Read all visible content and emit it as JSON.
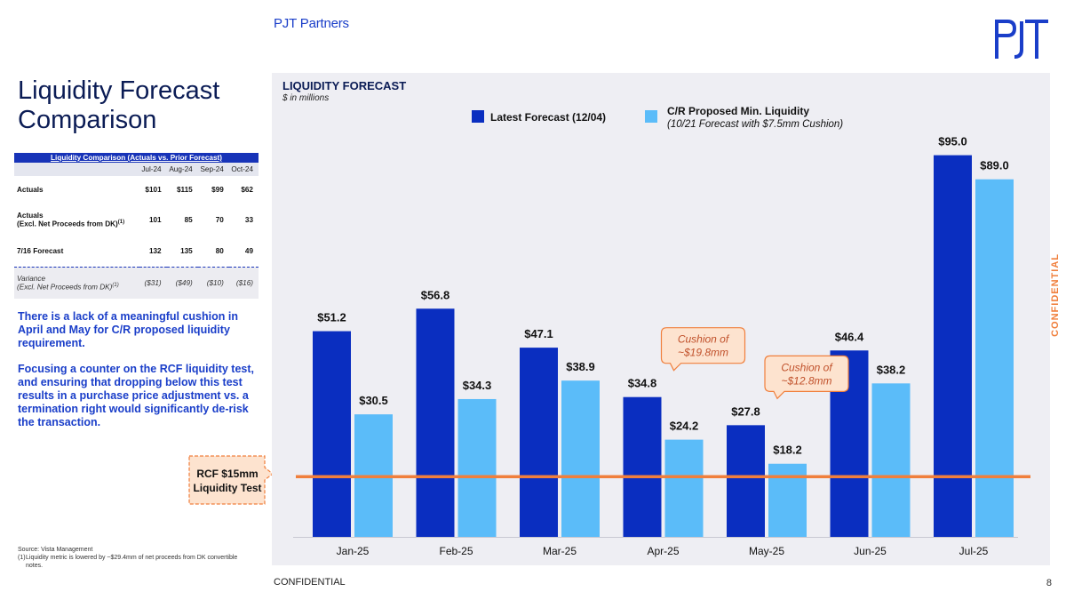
{
  "header": {
    "brand": "PJT Partners",
    "side_label": "CONFIDENTIAL"
  },
  "left": {
    "title_line1": "Liquidity Forecast",
    "title_line2": "Comparison",
    "table": {
      "heading": "Liquidity Comparison (Actuals vs. Prior Forecast)",
      "columns": [
        "Jul-24",
        "Aug-24",
        "Sep-24",
        "Oct-24"
      ],
      "rows": [
        {
          "label": "Actuals",
          "label2": "",
          "fn": "",
          "values": [
            "$101",
            "$115",
            "$99",
            "$62"
          ]
        },
        {
          "label": "Actuals",
          "label2": "(Excl. Net Proceeds from DK)",
          "fn": "(1)",
          "values": [
            "101",
            "85",
            "70",
            "33"
          ]
        },
        {
          "label": "7/16 Forecast",
          "label2": "",
          "fn": "",
          "values": [
            "132",
            "135",
            "80",
            "49"
          ]
        },
        {
          "label": "Variance",
          "label2": "(Excl. Net Proceeds from DK)",
          "fn": "(1)",
          "values": [
            "($31)",
            "($49)",
            "($10)",
            "($16)"
          ]
        }
      ]
    },
    "notes": [
      "There is a lack of a meaningful cushion in April and May for C/R proposed liquidity requirement.",
      "Focusing a counter on the RCF liquidity test, and ensuring that dropping below this test results in a purchase price adjustment vs. a termination right would significantly de-risk the transaction."
    ],
    "source": "Source: Vista Management",
    "footnote_num": "(1)",
    "footnote_text": "Liquidity metric is lowered by ~$29.4mm of net proceeds from DK convertible",
    "footnote_cont": "notes.",
    "rcf_line1": "RCF $15mm",
    "rcf_line2": "Liquidity Test"
  },
  "footer": {
    "confidential": "CONFIDENTIAL",
    "page": "8"
  },
  "colors": {
    "series1": "#0a2ec0",
    "series2": "#5bbcf9",
    "threshold": "#f07f3c",
    "callout_fill": "#fde3cf",
    "callout_text": "#c0502a",
    "brand": "#1a3ec9"
  },
  "chart_data": {
    "type": "bar",
    "title": "LIQUIDITY FORECAST",
    "subtitle": "$ in millions",
    "categories": [
      "Jan-25",
      "Feb-25",
      "Mar-25",
      "Apr-25",
      "May-25",
      "Jun-25",
      "Jul-25"
    ],
    "series": [
      {
        "name": "Latest Forecast (12/04)",
        "name2": "",
        "values": [
          51.2,
          56.8,
          47.1,
          34.8,
          27.8,
          46.4,
          95.0
        ],
        "labels": [
          "$51.2",
          "$56.8",
          "$47.1",
          "$34.8",
          "$27.8",
          "$46.4",
          "$95.0"
        ]
      },
      {
        "name": "C/R Proposed Min. Liquidity",
        "name2": "(10/21 Forecast with $7.5mm Cushion)",
        "values": [
          30.5,
          34.3,
          38.9,
          24.2,
          18.2,
          38.2,
          89.0
        ],
        "labels": [
          "$30.5",
          "$34.3",
          "$38.9",
          "$24.2",
          "$18.2",
          "$38.2",
          "$89.0"
        ]
      }
    ],
    "threshold": 15,
    "ylim": [
      0,
      100
    ],
    "annotations": [
      {
        "category": "Apr-25",
        "line1": "Cushion of",
        "line2": "~$19.8mm"
      },
      {
        "category": "May-25",
        "line1": "Cushion of",
        "line2": "~$12.8mm"
      }
    ],
    "legend": "top"
  }
}
